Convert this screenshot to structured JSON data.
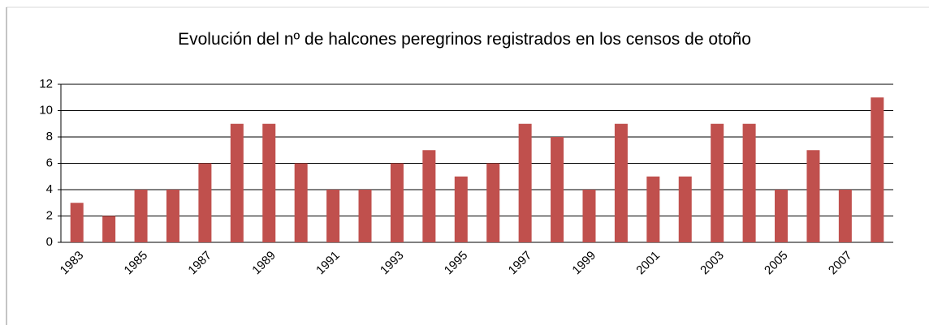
{
  "chart_data": {
    "type": "bar",
    "title": "Evolución del nº de halcones peregrinos registrados en los censos de otoño",
    "categories": [
      "1983",
      null,
      "1985",
      null,
      "1987",
      null,
      "1989",
      null,
      "1991",
      null,
      "1993",
      null,
      "1995",
      null,
      "1997",
      null,
      "1999",
      null,
      "2001",
      null,
      "2003",
      null,
      "2005",
      null,
      "2007",
      null
    ],
    "values": [
      3,
      2,
      4,
      4,
      6,
      9,
      9,
      6,
      4,
      4,
      6,
      7,
      5,
      6,
      9,
      8,
      4,
      9,
      5,
      5,
      9,
      9,
      4,
      7,
      4,
      11
    ],
    "color": "#c0504d",
    "ylim": [
      0,
      12
    ],
    "yticks": [
      0,
      2,
      4,
      6,
      8,
      10,
      12
    ],
    "grid": true
  }
}
